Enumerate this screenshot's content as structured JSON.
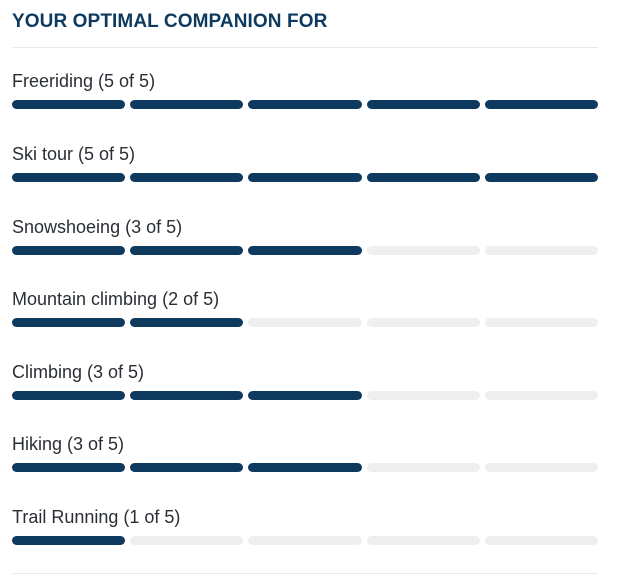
{
  "section": {
    "title": "YOUR OPTIMAL COMPANION FOR"
  },
  "colors": {
    "filled": "#0f3a5f",
    "empty": "#efefef",
    "divider": "#e6e8ea"
  },
  "activities": [
    {
      "label": "Freeriding (5 of 5)",
      "rating": 5,
      "max": 5
    },
    {
      "label": "Ski tour (5 of 5)",
      "rating": 5,
      "max": 5
    },
    {
      "label": "Snowshoeing (3 of 5)",
      "rating": 3,
      "max": 5
    },
    {
      "label": "Mountain climbing (2 of 5)",
      "rating": 2,
      "max": 5
    },
    {
      "label": "Climbing (3 of 5)",
      "rating": 3,
      "max": 5
    },
    {
      "label": "Hiking (3 of 5)",
      "rating": 3,
      "max": 5
    },
    {
      "label": "Trail Running (1 of 5)",
      "rating": 1,
      "max": 5
    }
  ]
}
